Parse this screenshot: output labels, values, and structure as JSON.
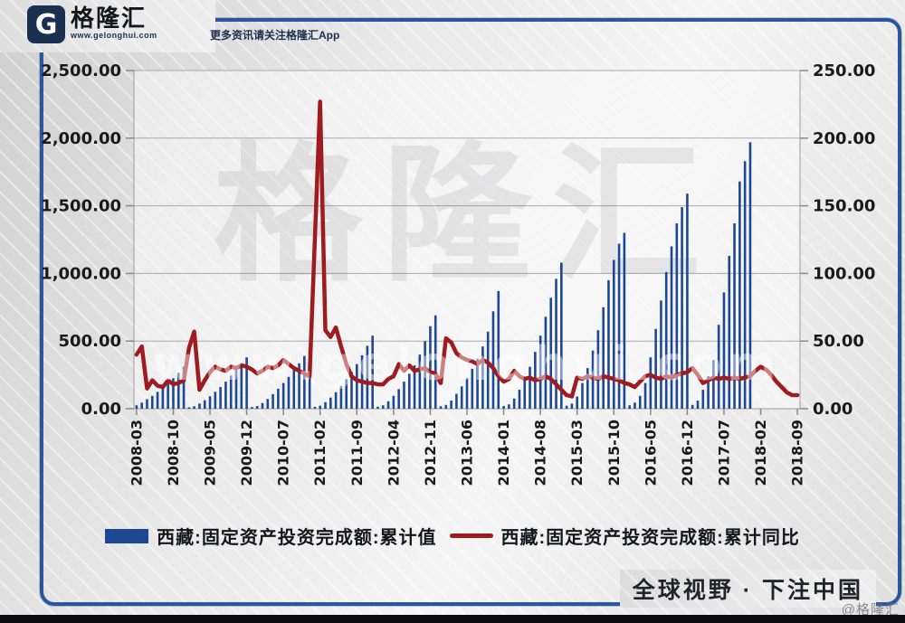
{
  "header": {
    "brand_letter": "G",
    "brand_name": "格隆汇",
    "brand_url": "www.gelonghui.com",
    "tagline": "更多资讯请关注格隆汇App"
  },
  "footer": {
    "slogan": "全球视野 · 下注中国",
    "corner_watermark": "@格隆汇"
  },
  "watermark": {
    "big_text": "格隆汇",
    "small_text": "www.gelonghui.com"
  },
  "colors": {
    "bar": "#1f4894",
    "line": "#9e1c20",
    "frame": "#2a56a0",
    "grid": "#a9a9a9",
    "axis_text": "#1a1a1a"
  },
  "legend": [
    {
      "label": "西藏:固定资产投资完成额:累计值",
      "type": "bar",
      "color": "#1f4894"
    },
    {
      "label": "西藏:固定资产投资完成额:累计同比",
      "type": "line",
      "color": "#9e1c20"
    }
  ],
  "chart_data": {
    "type": "bar",
    "subtype": "bar+line dual axis, monthly cumulative series",
    "x_start": "2008-03",
    "x_end": "2018-09",
    "x_freq": "monthly",
    "x_tick_labels": [
      "2008-03",
      "2008-10",
      "2009-05",
      "2009-12",
      "2010-07",
      "2011-02",
      "2011-09",
      "2012-04",
      "2012-11",
      "2013-06",
      "2014-01",
      "2014-08",
      "2015-03",
      "2015-10",
      "2016-05",
      "2016-12",
      "2017-07",
      "2018-02",
      "2018-09"
    ],
    "x_tick_every_n_months": 7,
    "left_axis": {
      "min": 0,
      "max": 2500,
      "tick_step": 500,
      "tick_labels_top_to_bottom": [
        "2,500.00",
        "2,000.00",
        "1,500.00",
        "1,000.00",
        "500.00",
        "0.00"
      ]
    },
    "right_axis": {
      "min": 0,
      "max": 250,
      "tick_step": 50,
      "tick_labels_top_to_bottom": [
        "250.00",
        "200.00",
        "150.00",
        "100.00",
        "50.00",
        "0.00"
      ]
    },
    "grid": true,
    "legend_position": "bottom",
    "series": [
      {
        "name": "西藏:固定资产投资完成额:累计值",
        "type": "bar",
        "axis": "left",
        "color": "#1f4894",
        "values": [
          25,
          45,
          70,
          95,
          125,
          155,
          190,
          225,
          265,
          310,
          10,
          18,
          38,
          62,
          92,
          125,
          160,
          200,
          245,
          290,
          335,
          380,
          12,
          20,
          42,
          72,
          108,
          148,
          190,
          235,
          285,
          335,
          390,
          450,
          14,
          22,
          48,
          82,
          122,
          168,
          218,
          272,
          330,
          395,
          465,
          540,
          15,
          25,
          55,
          95,
          145,
          200,
          258,
          320,
          400,
          500,
          610,
          690,
          18,
          28,
          60,
          110,
          165,
          225,
          295,
          370,
          460,
          570,
          720,
          870,
          20,
          32,
          75,
          140,
          220,
          310,
          420,
          540,
          680,
          820,
          960,
          1080,
          22,
          38,
          90,
          190,
          300,
          430,
          580,
          750,
          950,
          1100,
          1220,
          1300,
          25,
          45,
          95,
          190,
          380,
          590,
          800,
          1010,
          1200,
          1370,
          1490,
          1590,
          28,
          60,
          140,
          240,
          360,
          620,
          860,
          1130,
          1370,
          1680,
          1830,
          1970,
          null,
          null,
          null,
          null,
          null,
          null,
          null,
          null,
          null
        ]
      },
      {
        "name": "西藏:固定资产投资完成额:累计同比",
        "type": "line",
        "axis": "right",
        "color": "#9e1c20",
        "values": [
          40,
          46,
          15,
          21,
          17,
          16,
          21,
          18,
          19,
          21,
          45,
          57,
          14,
          21,
          27,
          31,
          29,
          28,
          31,
          30,
          32,
          31,
          29,
          26,
          28,
          31,
          30,
          32,
          36,
          33,
          30,
          28,
          26,
          24,
          125,
          227,
          58,
          53,
          60,
          46,
          33,
          24,
          21,
          20,
          19,
          19,
          18,
          18,
          22,
          24,
          33,
          28,
          32,
          28,
          29,
          30,
          27,
          26,
          19,
          52,
          49,
          41,
          38,
          36,
          35,
          33,
          36,
          34,
          30,
          24,
          20,
          22,
          28,
          24,
          22,
          23,
          21,
          22,
          24,
          22,
          18,
          14,
          10,
          9,
          23,
          22,
          24,
          23,
          22,
          24,
          23,
          22,
          21,
          19,
          18,
          16,
          20,
          24,
          25,
          23,
          22,
          24,
          23,
          25,
          26,
          27,
          30,
          25,
          19,
          21,
          23,
          22,
          23,
          22,
          23,
          22,
          23,
          24,
          28,
          31,
          29,
          25,
          20,
          16,
          12,
          10,
          10
        ]
      }
    ]
  }
}
